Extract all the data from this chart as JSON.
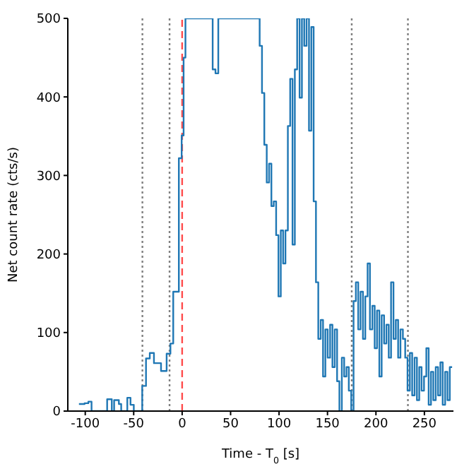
{
  "chart_data": {
    "type": "step",
    "xlabel": "Time - T$_{0}$ [s]",
    "ylabel": "Net count rate (cts/s)",
    "xlim": [
      -118,
      280
    ],
    "xticks": [
      -100,
      -50,
      0,
      50,
      100,
      150,
      200,
      250
    ],
    "ylim": [
      0,
      500
    ],
    "yticks": [
      0,
      100,
      200,
      300,
      400,
      500
    ],
    "grid": false,
    "legend": false,
    "series": [
      {
        "color": "#1f77b4",
        "x": [
          -106.5,
          -100.7,
          -96.8,
          -93.5,
          -77.4,
          -72.6,
          -70.2,
          -65.3,
          -62.9,
          -56.6,
          -53.3,
          -49.9,
          -41.2,
          -37.3,
          -33.4,
          -29.1,
          -21.8,
          -16,
          -12.1,
          -9.2,
          -3.4,
          -0.5,
          1.5,
          3.4,
          31.5,
          34.4,
          37.3,
          80,
          82.4,
          84.8,
          87.3,
          89.7,
          92.1,
          94.5,
          97,
          99.4,
          101.8,
          104.2,
          106.6,
          109.1,
          111.5,
          113.9,
          116.3,
          118.7,
          121.2,
          123.6,
          126,
          128.4,
          130.9,
          133.3,
          135.7,
          138.1,
          140.5,
          143,
          145.4,
          147.8,
          150.2,
          152.7,
          155.1,
          157.5,
          159.9,
          162.3,
          164.8,
          167.2,
          169.6,
          172,
          174.5,
          176.9,
          179.3,
          181.7,
          184.1,
          186.6,
          189,
          191.4,
          193.8,
          196.3,
          198.7,
          201.1,
          203.5,
          205.9,
          208.4,
          210.8,
          213.2,
          215.6,
          218.1,
          220.5,
          222.9,
          225.3,
          227.8,
          230.2,
          232.6,
          235,
          237.4,
          239.9,
          242.3,
          244.7,
          247.1,
          249.6,
          252,
          254.4,
          256.8,
          259.2,
          261.7,
          264.1,
          266.5,
          268.9,
          271.4,
          273.8,
          276.2,
          278.6
        ],
        "values": [
          9,
          10,
          12,
          0,
          15,
          0,
          14,
          9,
          0,
          17,
          8,
          0,
          32,
          67,
          74,
          61,
          51,
          73,
          86,
          152,
          322,
          351,
          450,
          500,
          435,
          430,
          500,
          465,
          405,
          339,
          291,
          315,
          261,
          267,
          224,
          146,
          230,
          188,
          230,
          363,
          423,
          212,
          435,
          500,
          399,
          500,
          465,
          500,
          357,
          489,
          267,
          164,
          92,
          116,
          44,
          104,
          68,
          110,
          56,
          104,
          38,
          0,
          68,
          44,
          56,
          26,
          0,
          140,
          164,
          104,
          152,
          92,
          146,
          188,
          104,
          134,
          80,
          128,
          44,
          122,
          86,
          110,
          68,
          164,
          92,
          116,
          68,
          104,
          92,
          68,
          26,
          74,
          20,
          68,
          14,
          56,
          26,
          44,
          80,
          8,
          50,
          14,
          56,
          20,
          62,
          8,
          50,
          14,
          56,
          56
        ]
      }
    ],
    "ref_lines": [
      {
        "axis": "x",
        "value": -41,
        "color": "#808080",
        "line_style": "dotted"
      },
      {
        "axis": "x",
        "value": -13,
        "color": "#808080",
        "line_style": "dotted"
      },
      {
        "axis": "x",
        "value": 0,
        "color": "#ff4d4d",
        "line_style": "dashed"
      },
      {
        "axis": "x",
        "value": 175,
        "color": "#808080",
        "line_style": "dotted"
      },
      {
        "axis": "x",
        "value": 233,
        "color": "#808080",
        "line_style": "dotted"
      }
    ]
  }
}
